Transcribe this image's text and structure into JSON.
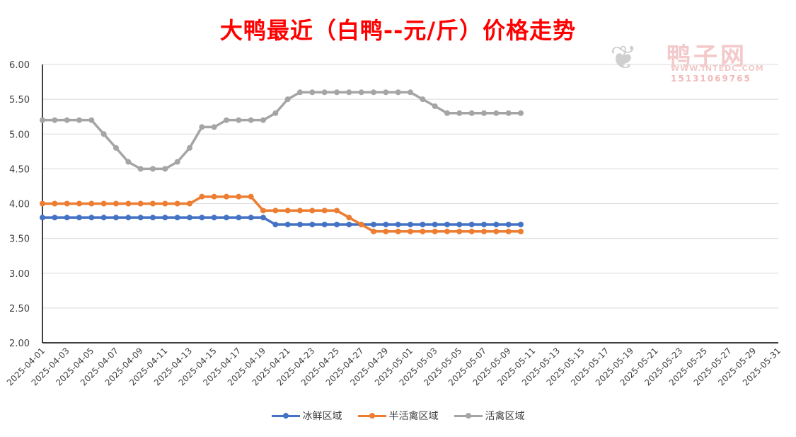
{
  "chart_data": {
    "type": "line",
    "title": "大鸭最近（白鸭--元/斤）价格走势",
    "xlabel": "",
    "ylabel": "",
    "ylim": [
      2.0,
      6.0
    ],
    "yticks": [
      "2.00",
      "2.50",
      "3.00",
      "3.50",
      "4.00",
      "4.50",
      "5.00",
      "5.50",
      "6.00"
    ],
    "x_start": "2025-04-01",
    "x_end": "2025-05-31",
    "x_tick_labels": [
      "2025-04-01",
      "2025-04-03",
      "2025-04-05",
      "2025-04-07",
      "2025-04-09",
      "2025-04-11",
      "2025-04-13",
      "2025-04-15",
      "2025-04-17",
      "2025-04-19",
      "2025-04-21",
      "2025-04-23",
      "2025-04-25",
      "2025-04-27",
      "2025-04-29",
      "2025-05-01",
      "2025-05-03",
      "2025-05-05",
      "2025-05-07",
      "2025-05-09",
      "2025-05-11",
      "2025-05-13",
      "2025-05-15",
      "2025-05-17",
      "2025-05-19",
      "2025-05-21",
      "2025-05-23",
      "2025-05-25",
      "2025-05-27",
      "2025-05-29",
      "2025-05-31"
    ],
    "x": [
      "2025-04-01",
      "2025-04-02",
      "2025-04-03",
      "2025-04-04",
      "2025-04-05",
      "2025-04-06",
      "2025-04-07",
      "2025-04-08",
      "2025-04-09",
      "2025-04-10",
      "2025-04-11",
      "2025-04-12",
      "2025-04-13",
      "2025-04-14",
      "2025-04-15",
      "2025-04-16",
      "2025-04-17",
      "2025-04-18",
      "2025-04-19",
      "2025-04-20",
      "2025-04-21",
      "2025-04-22",
      "2025-04-23",
      "2025-04-24",
      "2025-04-25",
      "2025-04-26",
      "2025-04-27",
      "2025-04-28",
      "2025-04-29",
      "2025-04-30",
      "2025-05-01",
      "2025-05-02",
      "2025-05-03",
      "2025-05-04",
      "2025-05-05",
      "2025-05-06",
      "2025-05-07",
      "2025-05-08",
      "2025-05-09",
      "2025-05-10"
    ],
    "grid": true,
    "legend_position": "bottom",
    "series": [
      {
        "name": "冰鲜区域",
        "color": "#4472c4",
        "values": [
          3.8,
          3.8,
          3.8,
          3.8,
          3.8,
          3.8,
          3.8,
          3.8,
          3.8,
          3.8,
          3.8,
          3.8,
          3.8,
          3.8,
          3.8,
          3.8,
          3.8,
          3.8,
          3.8,
          3.7,
          3.7,
          3.7,
          3.7,
          3.7,
          3.7,
          3.7,
          3.7,
          3.7,
          3.7,
          3.7,
          3.7,
          3.7,
          3.7,
          3.7,
          3.7,
          3.7,
          3.7,
          3.7,
          3.7,
          3.7
        ]
      },
      {
        "name": "半活禽区域",
        "color": "#ed7d31",
        "values": [
          4.0,
          4.0,
          4.0,
          4.0,
          4.0,
          4.0,
          4.0,
          4.0,
          4.0,
          4.0,
          4.0,
          4.0,
          4.0,
          4.1,
          4.1,
          4.1,
          4.1,
          4.1,
          3.9,
          3.9,
          3.9,
          3.9,
          3.9,
          3.9,
          3.9,
          3.8,
          3.7,
          3.6,
          3.6,
          3.6,
          3.6,
          3.6,
          3.6,
          3.6,
          3.6,
          3.6,
          3.6,
          3.6,
          3.6,
          3.6
        ]
      },
      {
        "name": "活禽区域",
        "color": "#a5a5a5",
        "values": [
          5.2,
          5.2,
          5.2,
          5.2,
          5.2,
          5.0,
          4.8,
          4.6,
          4.5,
          4.5,
          4.5,
          4.6,
          4.8,
          5.1,
          5.1,
          5.2,
          5.2,
          5.2,
          5.2,
          5.3,
          5.5,
          5.6,
          5.6,
          5.6,
          5.6,
          5.6,
          5.6,
          5.6,
          5.6,
          5.6,
          5.6,
          5.5,
          5.4,
          5.3,
          5.3,
          5.3,
          5.3,
          5.3,
          5.3,
          5.3
        ]
      }
    ]
  },
  "watermark": {
    "brand_cn": "鸭子网",
    "url": "WWW.INTEDC.COM",
    "phone": "15131069765",
    "logo_icon": "duck-logo-icon"
  }
}
